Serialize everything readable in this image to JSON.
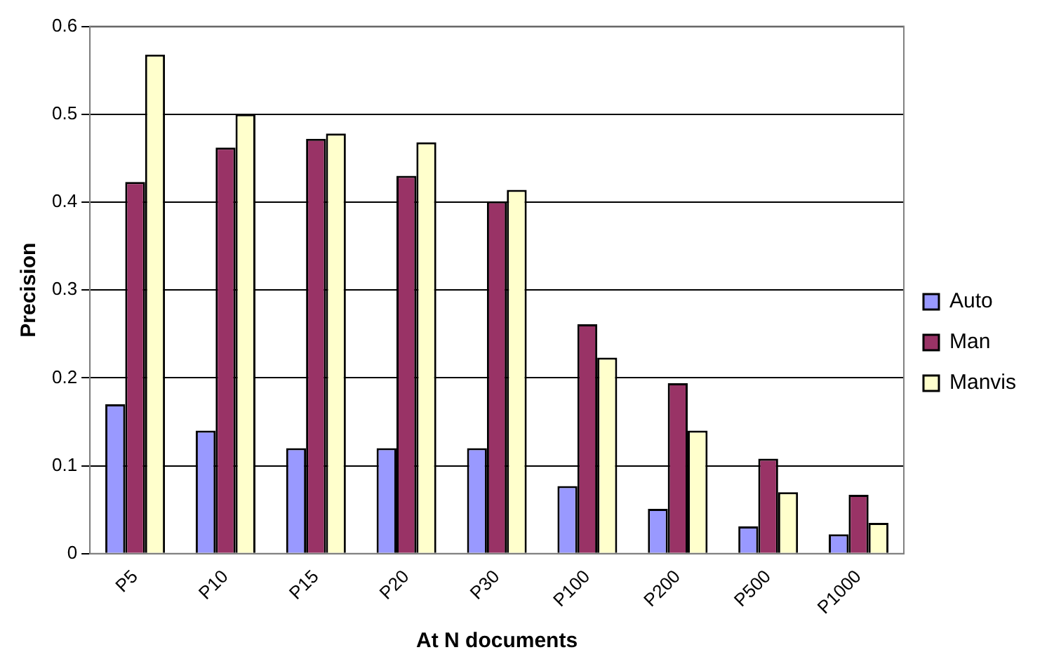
{
  "chart_data": {
    "type": "bar",
    "xlabel": "At N documents",
    "ylabel": "Precision",
    "categories": [
      "P5",
      "P10",
      "P15",
      "P20",
      "P30",
      "P100",
      "P200",
      "P500",
      "P1000"
    ],
    "series": [
      {
        "name": "Auto",
        "color": "#9999ff",
        "values": [
          0.17,
          0.14,
          0.12,
          0.12,
          0.12,
          0.077,
          0.051,
          0.031,
          0.022
        ]
      },
      {
        "name": "Man",
        "color": "#993366",
        "values": [
          0.423,
          0.462,
          0.472,
          0.43,
          0.401,
          0.261,
          0.194,
          0.108,
          0.067
        ]
      },
      {
        "name": "Manvis",
        "color": "#ffffcc",
        "values": [
          0.568,
          0.5,
          0.478,
          0.468,
          0.414,
          0.223,
          0.14,
          0.07,
          0.035
        ]
      }
    ],
    "ylim": [
      0,
      0.6
    ],
    "yticks": [
      0,
      0.1,
      0.2,
      0.3,
      0.4,
      0.5,
      0.6
    ],
    "grid": "y",
    "legend": "right"
  }
}
